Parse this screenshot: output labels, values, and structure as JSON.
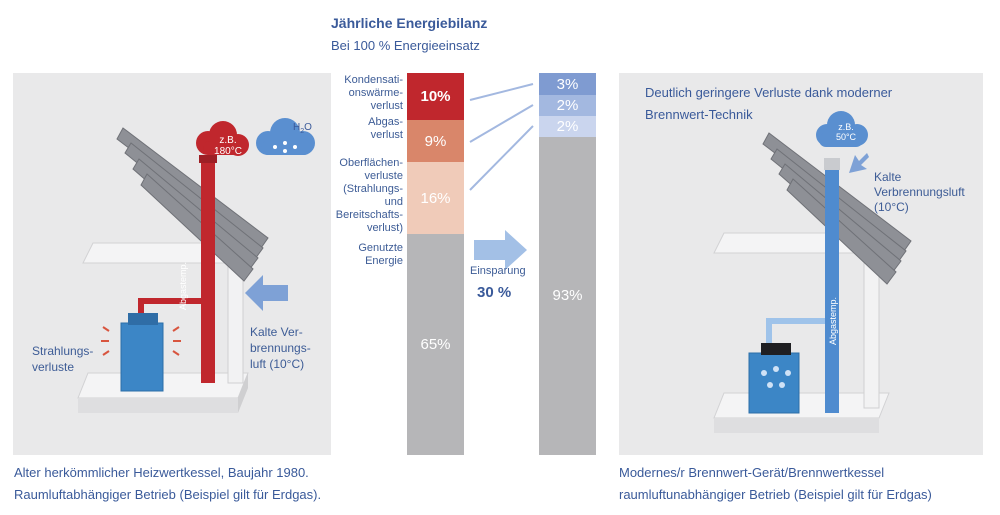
{
  "header": {
    "title": "Jährliche Energiebilanz",
    "subtitle": "Bei 100 % Energieeinsatz"
  },
  "left_panel": {
    "cloud_red": {
      "line1": "z.B.",
      "line2": "180°C"
    },
    "cloud_blue_label": "H",
    "cloud_blue_sub": "2",
    "cloud_blue_label2": "O",
    "chimney_label": "Abgastemp.",
    "radiation_label_1": "Strahlungs-",
    "radiation_label_2": "verluste",
    "cold_air_1": "Kalte Ver-",
    "cold_air_2": "brennungs-",
    "cold_air_3": "luft (10°C)",
    "caption_1": "Alter herkömmlicher Heizwertkessel, Baujahr 1980.",
    "caption_2": "Raumluftabhängiger Betrieb (Beispiel gilt für Erdgas)."
  },
  "right_panel": {
    "headline_1": "Deutlich geringere Verluste dank moderner",
    "headline_2": "Brennwert-Technik",
    "cloud": {
      "line1": "z.B.",
      "line2": "50°C"
    },
    "chimney_label": "Abgastemp.",
    "cold_air_1": "Kalte",
    "cold_air_2": "Verbrennungsluft",
    "cold_air_3": "(10°C)",
    "caption_1": "Modernes/r Brennwert-Gerät/Brennwertkessel",
    "caption_2": "raumluftunabhängiger Betrieb (Beispiel gilt für Erdgas)"
  },
  "labels": {
    "kondensation": [
      "Kondensati-",
      "onswärme-",
      "verlust"
    ],
    "abgas": [
      "Abgas-",
      "verlust"
    ],
    "oberflaeche": [
      "Oberflächen-",
      "verluste",
      "(Strahlungs-",
      "und",
      "Bereitschafts-",
      "verlust)"
    ],
    "genutzt": [
      "Genutzte",
      "Energie"
    ],
    "einsparung_label": "Einsparung",
    "einsparung_value": "30 %"
  },
  "chart_data": [
    {
      "type": "bar",
      "name": "Alter Heizwertkessel",
      "segments": [
        {
          "label": "Kondensationswärmeverlust",
          "value_text": "10%",
          "value": 10,
          "color": "#c0272d"
        },
        {
          "label": "Abgasverlust",
          "value_text": "9%",
          "value": 9,
          "color": "#d9866a"
        },
        {
          "label": "Oberflächenverluste (Strahlungs- und Bereitschaftsverlust)",
          "value_text": "16%",
          "value": 16,
          "color": "#f0cbb9"
        },
        {
          "label": "Genutzte Energie",
          "value_text": "65%",
          "value": 65,
          "color": "#b6b6b8"
        }
      ]
    },
    {
      "type": "bar",
      "name": "Brennwert-Gerät",
      "segments": [
        {
          "label": "Kondensationswärmeverlust",
          "value_text": "3%",
          "value": 3,
          "color": "#7f9bd1"
        },
        {
          "label": "Abgasverlust",
          "value_text": "2%",
          "value": 2,
          "color": "#a3b8e0"
        },
        {
          "label": "Oberflächenverluste",
          "value_text": "2%",
          "value": 2,
          "color": "#cad5ee"
        },
        {
          "label": "Genutzte Energie",
          "value_text": "93%",
          "value": 93,
          "color": "#b6b6b8"
        }
      ]
    }
  ]
}
